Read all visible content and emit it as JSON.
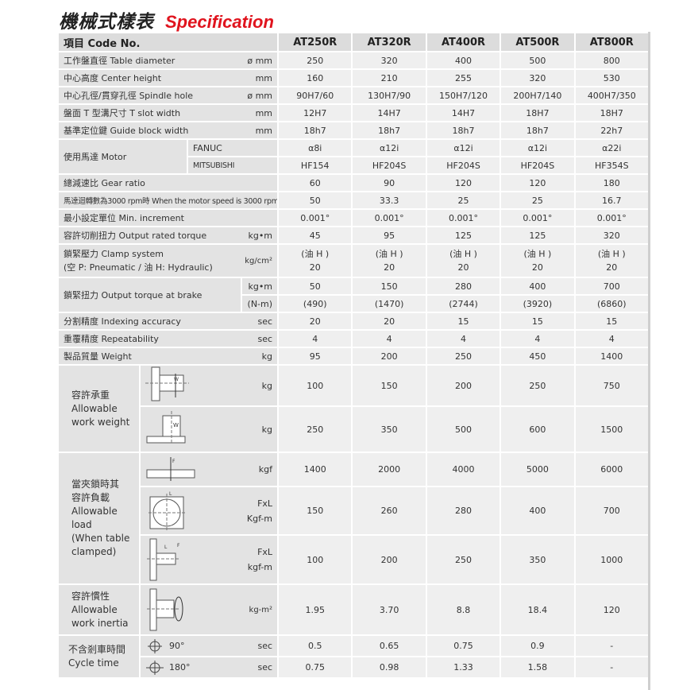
{
  "title": {
    "zh": "機械式樣表",
    "en": "Specification"
  },
  "header": {
    "label": "項目 Code No.",
    "models": [
      "AT250R",
      "AT320R",
      "AT400R",
      "AT500R",
      "AT800R"
    ]
  },
  "rows": {
    "table_diameter": {
      "label": "工作盤直徑 Table diameter",
      "unit": "ø mm",
      "values": [
        "250",
        "320",
        "400",
        "500",
        "800"
      ]
    },
    "center_height": {
      "label": "中心高度 Center height",
      "unit": "mm",
      "values": [
        "160",
        "210",
        "255",
        "320",
        "530"
      ]
    },
    "spindle_hole": {
      "label": "中心孔徑/貫穿孔徑 Spindle hole",
      "unit": "ø mm",
      "values": [
        "90H7/60",
        "130H7/90",
        "150H7/120",
        "200H7/140",
        "400H7/350"
      ]
    },
    "t_slot": {
      "label": "盤面 T 型溝尺寸 T slot width",
      "unit": "mm",
      "values": [
        "12H7",
        "14H7",
        "14H7",
        "18H7",
        "18H7"
      ]
    },
    "guide_block": {
      "label": "基準定位鍵 Guide block width",
      "unit": "mm",
      "values": [
        "18h7",
        "18h7",
        "18h7",
        "18h7",
        "22h7"
      ]
    },
    "motor": {
      "label": "使用馬達 Motor",
      "fanuc": {
        "label": "FANUC",
        "values": [
          "α8i",
          "α12i",
          "α12i",
          "α12i",
          "α22i"
        ]
      },
      "mitsubishi": {
        "label": "MITSUBISHI",
        "values": [
          "HF154",
          "HF204S",
          "HF204S",
          "HF204S",
          "HF354S"
        ]
      }
    },
    "gear_ratio": {
      "label": "總減速比 Gear ratio",
      "values": [
        "60",
        "90",
        "120",
        "120",
        "180"
      ]
    },
    "motor_speed": {
      "label": "馬達迴轉數為3000 rpm時 When the motor speed is 3000 rpm",
      "unit": "rpm",
      "values": [
        "50",
        "33.3",
        "25",
        "25",
        "16.7"
      ]
    },
    "min_increment": {
      "label": "最小設定單位 Min. increment",
      "values": [
        "0.001°",
        "0.001°",
        "0.001°",
        "0.001°",
        "0.001°"
      ]
    },
    "rated_torque": {
      "label": "容許切削扭力 Output rated torque",
      "unit": "kg•m",
      "values": [
        "45",
        "95",
        "125",
        "125",
        "320"
      ]
    },
    "clamp": {
      "label": "鎖緊壓力  Clamp system\n(空 P: Pneumatic / 油 H: Hydraulic)",
      "unit": "kg/cm²",
      "values": [
        "(油 H )\n20",
        "(油 H )\n20",
        "(油 H )\n20",
        "(油 H )\n20",
        "(油 H )\n20"
      ]
    },
    "brake_torque": {
      "label": "鎖緊扭力 Output torque at brake",
      "kgm": {
        "unit": "kg•m",
        "values": [
          "50",
          "150",
          "280",
          "400",
          "700"
        ]
      },
      "nm": {
        "unit": "(N-m)",
        "values": [
          "(490)",
          "(1470)",
          "(2744)",
          "(3920)",
          "(6860)"
        ]
      }
    },
    "indexing": {
      "label": "分割精度 Indexing accuracy",
      "unit": "sec",
      "values": [
        "20",
        "20",
        "15",
        "15",
        "15"
      ]
    },
    "repeatability": {
      "label": "重覆精度 Repeatability",
      "unit": "sec",
      "values": [
        "4",
        "4",
        "4",
        "4",
        "4"
      ]
    },
    "weight": {
      "label": "製品質量 Weight",
      "unit": "kg",
      "values": [
        "95",
        "200",
        "250",
        "450",
        "1400"
      ]
    },
    "work_weight": {
      "label": "容許承重\nAllowable\nwork weight",
      "vertical": {
        "unit": "kg",
        "values": [
          "100",
          "150",
          "200",
          "250",
          "750"
        ]
      },
      "horizontal": {
        "unit": "kg",
        "values": [
          "250",
          "350",
          "500",
          "600",
          "1500"
        ]
      }
    },
    "allowable_load": {
      "label": "當夾鎖時其\n容許負載\nAllowable load\n(When table\nclamped)",
      "axial": {
        "unit": "kgf",
        "values": [
          "1400",
          "2000",
          "4000",
          "5000",
          "6000"
        ]
      },
      "radial": {
        "unit": "FxL\nKgf-m",
        "values": [
          "150",
          "260",
          "280",
          "400",
          "700"
        ]
      },
      "moment": {
        "unit": "FxL\nkgf-m",
        "values": [
          "100",
          "200",
          "250",
          "350",
          "1000"
        ]
      }
    },
    "inertia": {
      "label": "容許慣性\nAllowable\nwork inertia",
      "unit": "kg-m²",
      "values": [
        "1.95",
        "3.70",
        "8.8",
        "18.4",
        "120"
      ]
    },
    "cycle_time": {
      "label": "不含剎車時間\nCycle time",
      "deg90": {
        "angle": "90°",
        "unit": "sec",
        "values": [
          "0.5",
          "0.65",
          "0.75",
          "0.9",
          "-"
        ]
      },
      "deg180": {
        "angle": "180°",
        "unit": "sec",
        "values": [
          "0.75",
          "0.98",
          "1.33",
          "1.58",
          "-"
        ]
      }
    }
  }
}
